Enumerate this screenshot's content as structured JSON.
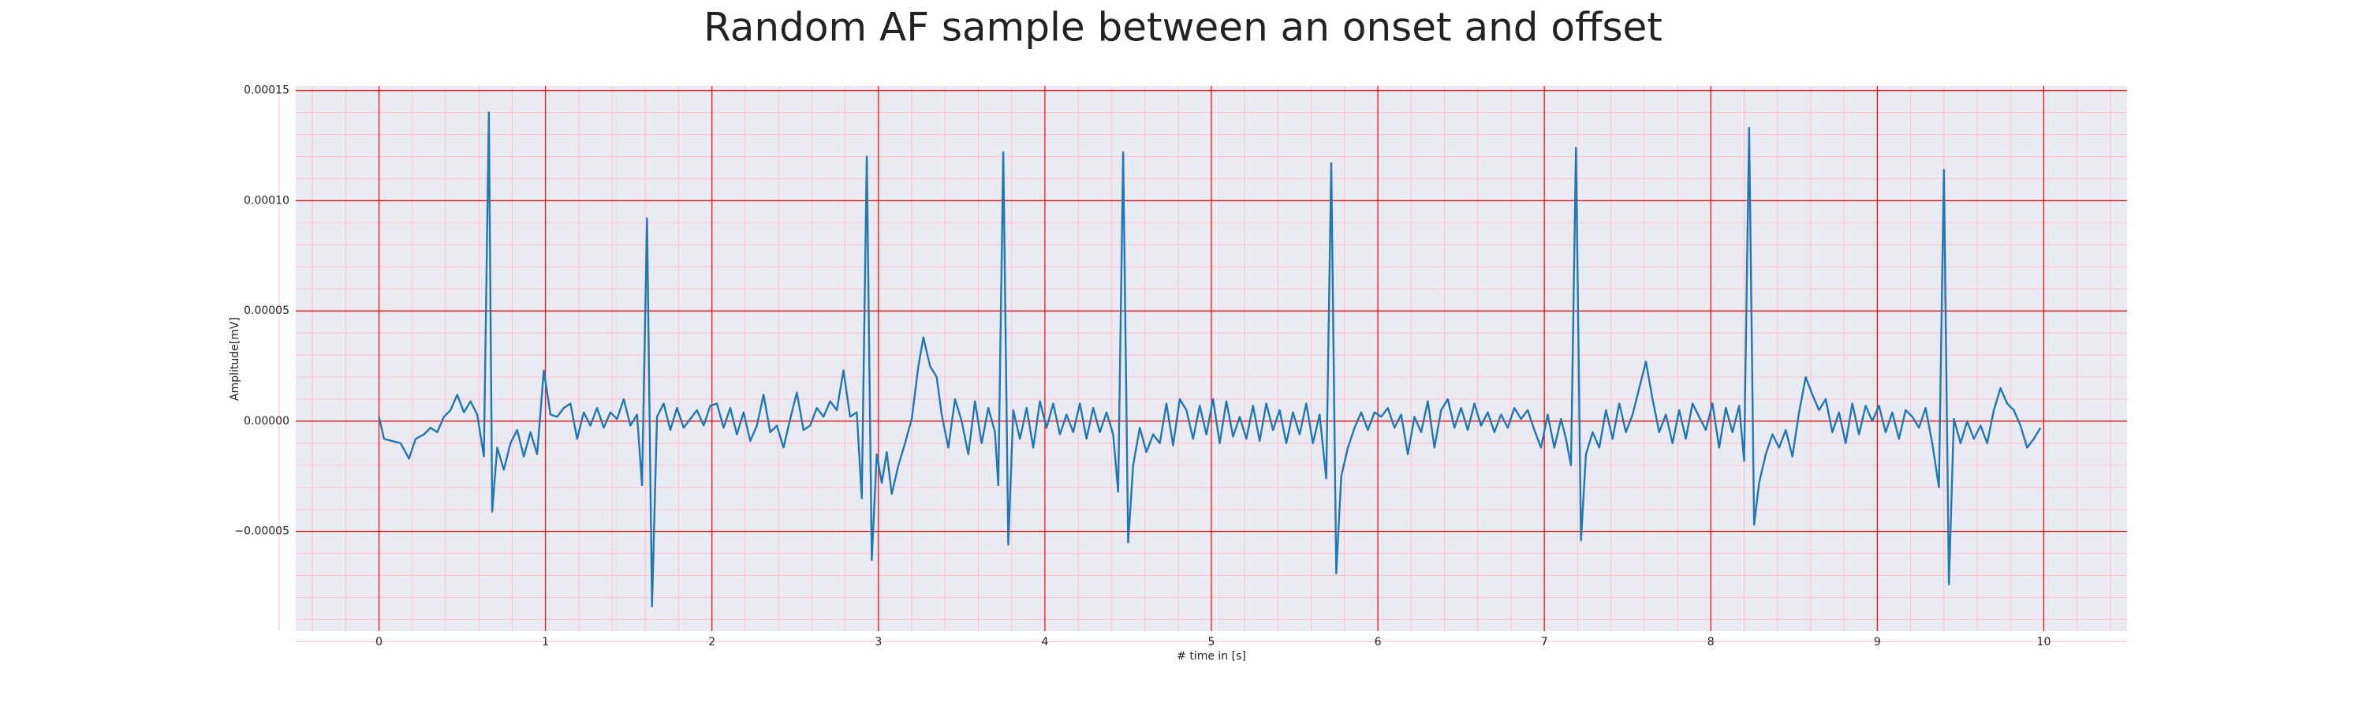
{
  "chart_data": {
    "type": "line",
    "title": "Random AF sample between an onset and offset",
    "xlabel": "# time in [s]",
    "ylabel": "Amplitude[mV]",
    "x": [
      0,
      0.03,
      0.08,
      0.13,
      0.18,
      0.22,
      0.27,
      0.31,
      0.35,
      0.39,
      0.43,
      0.47,
      0.51,
      0.55,
      0.59,
      0.63,
      0.66,
      0.68,
      0.71,
      0.75,
      0.79,
      0.83,
      0.87,
      0.91,
      0.95,
      0.99,
      1.03,
      1.07,
      1.11,
      1.15,
      1.19,
      1.23,
      1.27,
      1.31,
      1.35,
      1.39,
      1.43,
      1.47,
      1.51,
      1.55,
      1.58,
      1.61,
      1.64,
      1.67,
      1.71,
      1.75,
      1.79,
      1.83,
      1.87,
      1.91,
      1.95,
      1.99,
      2.03,
      2.07,
      2.11,
      2.15,
      2.19,
      2.23,
      2.27,
      2.31,
      2.35,
      2.39,
      2.43,
      2.47,
      2.51,
      2.55,
      2.59,
      2.63,
      2.67,
      2.71,
      2.75,
      2.79,
      2.83,
      2.87,
      2.9,
      2.93,
      2.96,
      2.99,
      3.02,
      3.05,
      3.08,
      3.12,
      3.16,
      3.2,
      3.24,
      3.27,
      3.31,
      3.35,
      3.38,
      3.42,
      3.46,
      3.5,
      3.54,
      3.58,
      3.62,
      3.66,
      3.7,
      3.72,
      3.75,
      3.78,
      3.81,
      3.85,
      3.89,
      3.93,
      3.97,
      4.01,
      4.05,
      4.09,
      4.13,
      4.17,
      4.21,
      4.25,
      4.29,
      4.33,
      4.37,
      4.41,
      4.44,
      4.47,
      4.5,
      4.53,
      4.57,
      4.61,
      4.65,
      4.69,
      4.73,
      4.77,
      4.81,
      4.85,
      4.89,
      4.93,
      4.97,
      5.01,
      5.05,
      5.09,
      5.13,
      5.17,
      5.21,
      5.25,
      5.29,
      5.33,
      5.37,
      5.41,
      5.45,
      5.49,
      5.53,
      5.57,
      5.61,
      5.65,
      5.69,
      5.72,
      5.75,
      5.78,
      5.82,
      5.86,
      5.9,
      5.94,
      5.98,
      6.02,
      6.06,
      6.1,
      6.14,
      6.18,
      6.22,
      6.26,
      6.3,
      6.34,
      6.38,
      6.42,
      6.46,
      6.5,
      6.54,
      6.58,
      6.62,
      6.66,
      6.7,
      6.74,
      6.78,
      6.82,
      6.86,
      6.9,
      6.94,
      6.98,
      7.02,
      7.06,
      7.1,
      7.13,
      7.16,
      7.19,
      7.22,
      7.25,
      7.29,
      7.33,
      7.37,
      7.41,
      7.45,
      7.49,
      7.53,
      7.57,
      7.61,
      7.65,
      7.69,
      7.73,
      7.77,
      7.81,
      7.85,
      7.89,
      7.93,
      7.97,
      8.01,
      8.05,
      8.09,
      8.13,
      8.17,
      8.2,
      8.23,
      8.26,
      8.29,
      8.33,
      8.37,
      8.41,
      8.45,
      8.49,
      8.53,
      8.57,
      8.61,
      8.65,
      8.69,
      8.73,
      8.77,
      8.81,
      8.85,
      8.89,
      8.93,
      8.97,
      9.01,
      9.05,
      9.09,
      9.13,
      9.17,
      9.21,
      9.25,
      9.29,
      9.33,
      9.37,
      9.4,
      9.43,
      9.46,
      9.5,
      9.54,
      9.58,
      9.62,
      9.66,
      9.7,
      9.74,
      9.78,
      9.82,
      9.86,
      9.9,
      9.94,
      9.98
    ],
    "series": [
      {
        "color": "#1f77b4",
        "values": [
          2e-06,
          -8e-06,
          -9e-06,
          -1e-05,
          -1.7e-05,
          -8e-06,
          -6e-06,
          -3e-06,
          -5e-06,
          2e-06,
          5e-06,
          1.2e-05,
          4e-06,
          9e-06,
          3e-06,
          -1.6e-05,
          0.00014,
          -4.1e-05,
          -1.2e-05,
          -2.2e-05,
          -1e-05,
          -4e-06,
          -1.6e-05,
          -5e-06,
          -1.5e-05,
          2.3e-05,
          3e-06,
          2e-06,
          6e-06,
          8e-06,
          -8e-06,
          4e-06,
          -2e-06,
          6e-06,
          -3e-06,
          4e-06,
          1e-06,
          1e-05,
          -2e-06,
          3e-06,
          -2.9e-05,
          9.2e-05,
          -8.4e-05,
          2e-06,
          8e-06,
          -4e-06,
          6e-06,
          -3e-06,
          1e-06,
          5e-06,
          -2e-06,
          7e-06,
          8e-06,
          -3e-06,
          6e-06,
          -6e-06,
          4e-06,
          -9e-06,
          -2e-06,
          1.2e-05,
          -5e-06,
          -2e-06,
          -1.2e-05,
          1e-06,
          1.3e-05,
          -4e-06,
          -2e-06,
          6e-06,
          2e-06,
          9e-06,
          5e-06,
          2.3e-05,
          2e-06,
          4e-06,
          -3.5e-05,
          0.00012,
          -6.3e-05,
          -1.5e-05,
          -2.8e-05,
          -1.4e-05,
          -3.3e-05,
          -2e-05,
          -1e-05,
          1e-06,
          2.5e-05,
          3.8e-05,
          2.5e-05,
          2e-05,
          3e-06,
          -1.2e-05,
          1e-05,
          0,
          -1.5e-05,
          9e-06,
          -1e-05,
          6e-06,
          -5e-06,
          -2.9e-05,
          0.000122,
          -5.6e-05,
          5e-06,
          -8e-06,
          6e-06,
          -1.2e-05,
          9e-06,
          -3e-06,
          8e-06,
          -6e-06,
          3e-06,
          -5e-06,
          8e-06,
          -8e-06,
          6e-06,
          -5e-06,
          4e-06,
          -6e-06,
          -3.2e-05,
          0.000122,
          -5.5e-05,
          -2e-05,
          -3e-06,
          -1.4e-05,
          -6e-06,
          -1e-05,
          8e-06,
          -1.1e-05,
          1e-05,
          5e-06,
          -8e-06,
          7e-06,
          -6e-06,
          1e-05,
          -1e-05,
          9e-06,
          -7e-06,
          2e-06,
          -8e-06,
          7e-06,
          -9e-06,
          8e-06,
          -4e-06,
          5e-06,
          -1e-05,
          4e-06,
          -6e-06,
          8e-06,
          -1e-05,
          3e-06,
          -2.6e-05,
          0.000117,
          -6.9e-05,
          -2.5e-05,
          -1.2e-05,
          -3e-06,
          4e-06,
          -4e-06,
          4e-06,
          2e-06,
          6e-06,
          -3e-06,
          3e-06,
          -1.5e-05,
          2e-06,
          -5e-06,
          9e-06,
          -1.2e-05,
          5e-06,
          1e-05,
          -3e-06,
          6e-06,
          -4e-06,
          8e-06,
          -2e-06,
          4e-06,
          -5e-06,
          3e-06,
          -3e-06,
          6e-06,
          1e-06,
          5e-06,
          -4e-06,
          -1.2e-05,
          3e-06,
          -1.2e-05,
          1e-06,
          -8e-06,
          -2e-05,
          0.000124,
          -5.4e-05,
          -1.5e-05,
          -5e-06,
          -1.2e-05,
          5e-06,
          -8e-06,
          8e-06,
          -5e-06,
          3e-06,
          1.5e-05,
          2.7e-05,
          1e-05,
          -5e-06,
          3e-06,
          -1e-05,
          5e-06,
          -8e-06,
          8e-06,
          2e-06,
          -4e-06,
          8e-06,
          -1.2e-05,
          6e-06,
          -5e-06,
          7e-06,
          -1.8e-05,
          0.000133,
          -4.7e-05,
          -2.8e-05,
          -1.5e-05,
          -6e-06,
          -1.2e-05,
          -4e-06,
          -1.6e-05,
          4e-06,
          2e-05,
          1.2e-05,
          5e-06,
          1e-05,
          -5e-06,
          4e-06,
          -1e-05,
          8e-06,
          -6e-06,
          7e-06,
          0,
          7e-06,
          -5e-06,
          4e-06,
          -8e-06,
          5e-06,
          2e-06,
          -3e-06,
          6e-06,
          -1e-05,
          -3e-05,
          0.000114,
          -7.4e-05,
          1e-06,
          -1e-05,
          0,
          -8e-06,
          -2e-06,
          -1e-05,
          5e-06,
          1.5e-05,
          8e-06,
          5e-06,
          -2e-06,
          -1.2e-05,
          -8e-06,
          -3e-06
        ]
      }
    ],
    "xlim": [
      -0.5,
      10.5
    ],
    "xticks": [
      0,
      1,
      2,
      3,
      4,
      5,
      6,
      7,
      8,
      9,
      10
    ],
    "ylim": [
      -9.52e-05,
      0.000152
    ],
    "yticks": [
      {
        "value": -5e-05,
        "label": "−0.00005"
      },
      {
        "value": 0,
        "label": "0.00000"
      },
      {
        "value": 5e-05,
        "label": "0.00005"
      },
      {
        "value": 0.0001,
        "label": "0.00010"
      },
      {
        "value": 0.00015,
        "label": "0.00015"
      }
    ],
    "grid": true,
    "grid_color": "#ff0000",
    "minor_grid": true,
    "minor_grid_color": "#ffc0cb",
    "background": "#eaeaf2"
  }
}
